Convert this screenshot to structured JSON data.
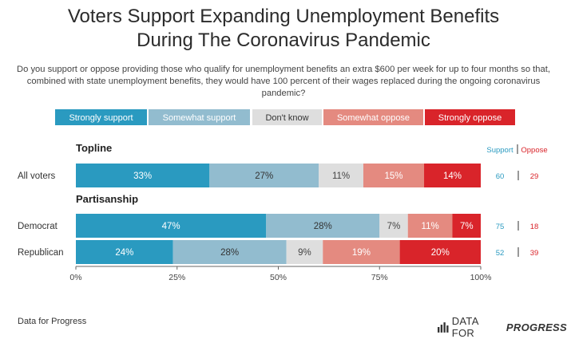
{
  "header": {
    "title_line1": "Voters Support Expanding Unemployment Benefits",
    "title_line2": "During The Coronavirus Pandemic",
    "subtitle": "Do you support or oppose providing those who qualify for unemployment benefits an extra $600 per week for up to four months so that, combined with state unemployment benefits, they would have 100 percent of their wages replaced during the ongoing coronavirus pandemic?"
  },
  "footer": {
    "source": "Data for Progress",
    "logo_prefix": "DATA FOR",
    "logo_strong": "PROGRESS",
    "logo_icon": "bar-chart-icon"
  },
  "chart_data": {
    "type": "bar",
    "orientation": "horizontal",
    "stacked": true,
    "categories": [
      "Strongly support",
      "Somewhat support",
      "Don't know",
      "Somewhat oppose",
      "Strongly oppose"
    ],
    "colors": [
      "#2a9ac0",
      "#92bccf",
      "#dedede",
      "#e48a80",
      "#d9242a"
    ],
    "groups": [
      {
        "label": "Topline",
        "rows": [
          {
            "label": "All voters",
            "values": [
              33,
              27,
              11,
              15,
              14
            ],
            "support": 60,
            "oppose": 29
          }
        ]
      },
      {
        "label": "Partisanship",
        "rows": [
          {
            "label": "Democrat",
            "values": [
              47,
              28,
              7,
              11,
              7
            ],
            "support": 75,
            "oppose": 18
          },
          {
            "label": "Republican",
            "values": [
              24,
              28,
              9,
              19,
              20
            ],
            "support": 52,
            "oppose": 39
          }
        ]
      }
    ],
    "xlim": [
      0,
      100
    ],
    "xticks": [
      "0%",
      "25%",
      "50%",
      "75%",
      "100%"
    ],
    "summary_headers": {
      "support": "Support",
      "oppose": "Oppose"
    },
    "summary_colors": {
      "support": "#2a9ac0",
      "oppose": "#d9242a"
    },
    "legend_position": "top",
    "grid": false
  }
}
